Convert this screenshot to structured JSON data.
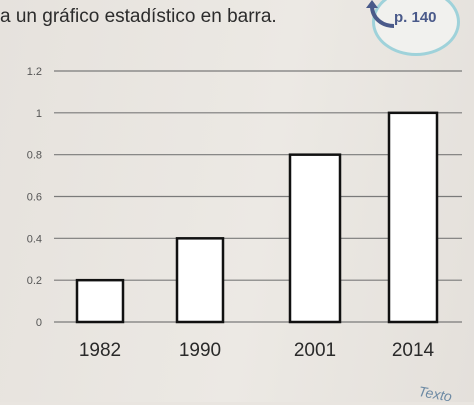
{
  "header": {
    "text": "a un gráfico estadístico en barra.",
    "page_ref": "p. 140"
  },
  "footer": {
    "corner_text": "Texto"
  },
  "colors": {
    "bar_stroke": "#111111",
    "bar_fill": "#ffffff",
    "grid": "#7a7a7a",
    "badge_ring": "#9fd2da",
    "badge_text": "#4a5a8a"
  },
  "chart_data": {
    "type": "bar",
    "categories": [
      "1982",
      "1990",
      "2001",
      "2014"
    ],
    "values": [
      0.2,
      0.4,
      0.8,
      1.0
    ],
    "title": "",
    "xlabel": "",
    "ylabel": "",
    "ylim": [
      0,
      1.2
    ],
    "yticks": [
      0,
      0.2,
      0.4,
      0.6,
      0.8,
      1,
      1.2
    ],
    "ytick_labels": [
      "0",
      "0.2",
      "0.4",
      "0.6",
      "0.8",
      "1",
      "1.2"
    ],
    "grid": true
  }
}
